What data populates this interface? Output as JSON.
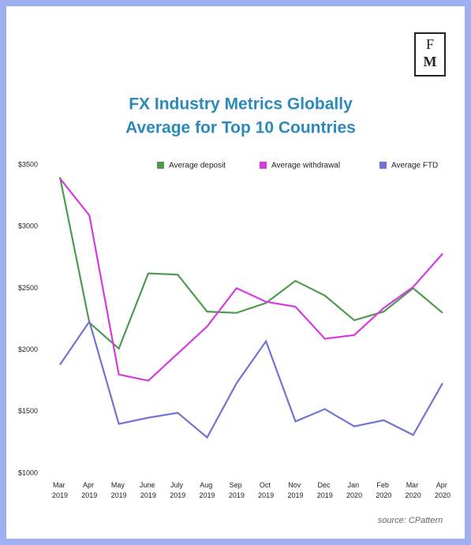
{
  "logo": {
    "top": "F",
    "bottom": "M"
  },
  "source": "source: CPattern",
  "chart_data": {
    "type": "line",
    "title": "FX Industry Metrics Globally",
    "subtitle": "Average for Top 10 Countries",
    "categories": [
      "Mar 2019",
      "Apr 2019",
      "May 2019",
      "June 2019",
      "July 2019",
      "Aug 2019",
      "Sep 2019",
      "Oct 2019",
      "Nov 2019",
      "Dec 2019",
      "Jan 2020",
      "Feb 2020",
      "Mar 2020",
      "Apr 2020"
    ],
    "series": [
      {
        "name": "Average deposit",
        "color": "#4e9a4e",
        "values": [
          3400,
          2220,
          2010,
          2620,
          2610,
          2310,
          2300,
          2380,
          2560,
          2440,
          2240,
          2310,
          2500,
          2300
        ]
      },
      {
        "name": "Average withdrawal",
        "color": "#d43be0",
        "values": [
          3390,
          3090,
          1800,
          1750,
          1970,
          2190,
          2500,
          2390,
          2350,
          2090,
          2120,
          2340,
          2510,
          2780
        ]
      },
      {
        "name": "Average FTD",
        "color": "#7373d6",
        "values": [
          1880,
          2230,
          1400,
          1450,
          1490,
          1290,
          1730,
          2070,
          1420,
          1520,
          1380,
          1430,
          1310,
          1730
        ]
      }
    ],
    "ylim": [
      1000,
      3500
    ],
    "yticks": [
      {
        "value": 1000,
        "label": "$1000"
      },
      {
        "value": 1500,
        "label": "$1500"
      },
      {
        "value": 2000,
        "label": "$2000"
      },
      {
        "value": 2500,
        "label": "$2500"
      },
      {
        "value": 3000,
        "label": "$3000"
      },
      {
        "value": 3500,
        "label": "$3500"
      }
    ],
    "grid": false,
    "legend": "top"
  }
}
